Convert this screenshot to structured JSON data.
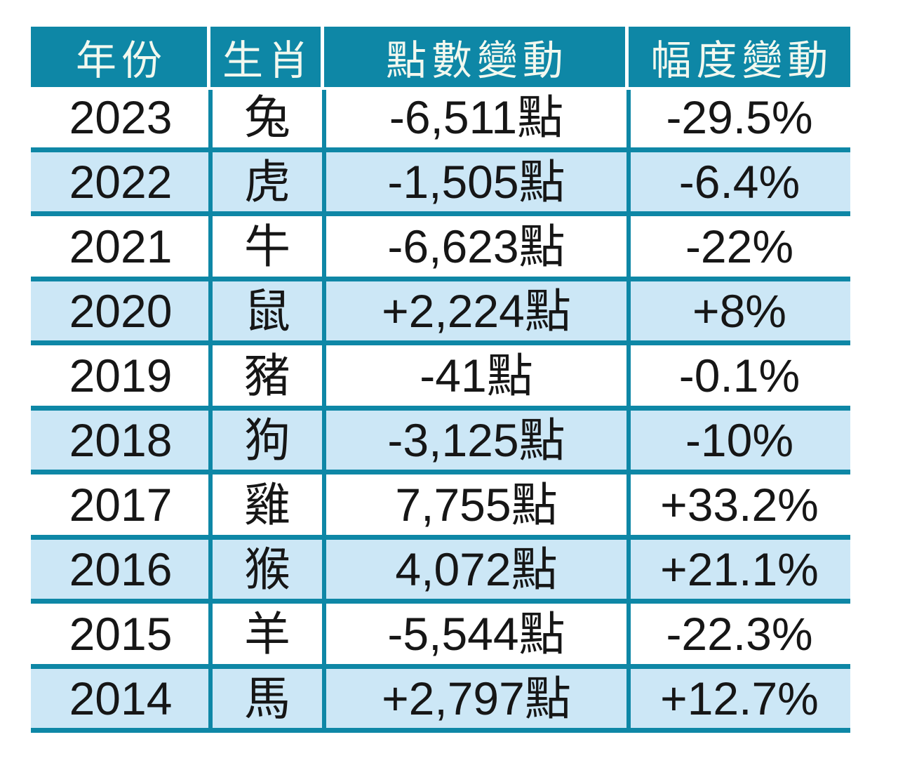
{
  "chart_data": {
    "type": "table",
    "columns": [
      "年份",
      "生肖",
      "點數變動",
      "幅度變動"
    ],
    "rows": [
      [
        "2023",
        "兔",
        "-6,511點",
        "-29.5%"
      ],
      [
        "2022",
        "虎",
        "-1,505點",
        "-6.4%"
      ],
      [
        "2021",
        "牛",
        "-6,623點",
        "-22%"
      ],
      [
        "2020",
        "鼠",
        "+2,224點",
        "+8%"
      ],
      [
        "2019",
        "豬",
        "-41點",
        "-0.1%"
      ],
      [
        "2018",
        "狗",
        "-3,125點",
        "-10%"
      ],
      [
        "2017",
        "雞",
        "7,755點",
        "+33.2%"
      ],
      [
        "2016",
        "猴",
        "4,072點",
        "+21.1%"
      ],
      [
        "2015",
        "羊",
        "-5,544點",
        "-22.3%"
      ],
      [
        "2014",
        "馬",
        "+2,797點",
        "+12.7%"
      ]
    ],
    "layout": {
      "header_position": "top",
      "grid": "on",
      "row_striping": "alternating white and light blue, starting white"
    }
  },
  "colors": {
    "teal": "#0E87A6",
    "header_text": "#F2F8EF",
    "row_bg": "#FFFFFF",
    "row_alt_bg": "#CCE7F6",
    "text": "#161616",
    "page_bg": "#FFFFFF"
  }
}
